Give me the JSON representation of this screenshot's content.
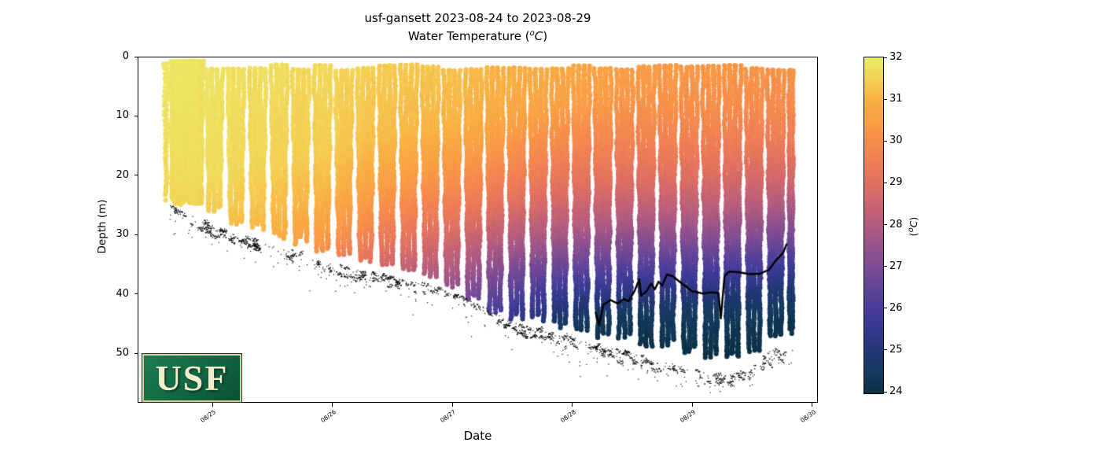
{
  "figure": {
    "title_line1": "usf-gansett 2023-08-24 to 2023-08-29",
    "title2_pre": "Water Temperature (",
    "title2_sup": "o",
    "title2_main": "C",
    "title2_post": ")"
  },
  "logo": {
    "text": "USF",
    "bg_top": "#1c7e54",
    "bg_bottom": "#0a5134",
    "border": "#d9cd9c",
    "fg": "#f3ecca"
  },
  "chart_data": {
    "type": "scatter",
    "title": "usf-gansett 2023-08-24 to 2023-08-29",
    "subtitle": "Water Temperature (°C)",
    "xlabel": "Date",
    "ylabel": "Depth (m)",
    "time_origin": "2023-08-24 00:00",
    "xlim_days": [
      0.377,
      6.049
    ],
    "ylim_depth": [
      0,
      58.3
    ],
    "x_ticks": [
      {
        "day": 1,
        "label": "08/25"
      },
      {
        "day": 2,
        "label": "08/26"
      },
      {
        "day": 3,
        "label": "08/27"
      },
      {
        "day": 4,
        "label": "08/28"
      },
      {
        "day": 5,
        "label": "08/29"
      },
      {
        "day": 6,
        "label": "08/30"
      }
    ],
    "y_ticks": [
      0,
      10,
      20,
      30,
      40,
      50
    ],
    "colorbar": {
      "range": [
        24,
        32
      ],
      "ticks": [
        24,
        25,
        26,
        27,
        28,
        29,
        30,
        31,
        32
      ],
      "label_pre": "(",
      "label_sup": "o",
      "label_main": "C",
      "label_post": ")"
    },
    "colormap_stops": [
      [
        24.0,
        "#0b3045"
      ],
      [
        24.5,
        "#143a60"
      ],
      [
        25.0,
        "#223674"
      ],
      [
        25.5,
        "#33388c"
      ],
      [
        26.0,
        "#463d9a"
      ],
      [
        26.5,
        "#604497"
      ],
      [
        27.0,
        "#7b4b94"
      ],
      [
        27.5,
        "#97538a"
      ],
      [
        28.0,
        "#b25c80"
      ],
      [
        28.5,
        "#ca6570"
      ],
      [
        29.0,
        "#e07060"
      ],
      [
        29.5,
        "#ee7e55"
      ],
      [
        30.0,
        "#f68d4b"
      ],
      [
        30.5,
        "#f99f44"
      ],
      [
        31.0,
        "#f8b143"
      ],
      [
        31.5,
        "#f3d254"
      ],
      [
        32.0,
        "#e9ee6b"
      ]
    ],
    "temperature_profiles": [
      {
        "t": 0.55,
        "points": [
          [
            0,
            31.9
          ],
          [
            24,
            31.6
          ]
        ]
      },
      {
        "t": 1.0,
        "points": [
          [
            0,
            31.8
          ],
          [
            20,
            31.7
          ],
          [
            28,
            31.3
          ]
        ]
      },
      {
        "t": 1.5,
        "points": [
          [
            0,
            31.7
          ],
          [
            18,
            31.5
          ],
          [
            25,
            31.2
          ],
          [
            31,
            30.9
          ]
        ]
      },
      {
        "t": 2.0,
        "points": [
          [
            0,
            31.6
          ],
          [
            16,
            31.4
          ],
          [
            23,
            31.0
          ],
          [
            29,
            30.4
          ],
          [
            33,
            29.8
          ]
        ]
      },
      {
        "t": 2.5,
        "points": [
          [
            0,
            31.4
          ],
          [
            14,
            31.1
          ],
          [
            21,
            30.5
          ],
          [
            27,
            29.7
          ],
          [
            32,
            29.0
          ],
          [
            36,
            28.3
          ]
        ]
      },
      {
        "t": 3.0,
        "points": [
          [
            0,
            31.3
          ],
          [
            12,
            31.0
          ],
          [
            19,
            30.3
          ],
          [
            26,
            29.4
          ],
          [
            31,
            28.6
          ],
          [
            36,
            27.9
          ],
          [
            40,
            27.2
          ]
        ]
      },
      {
        "t": 3.5,
        "points": [
          [
            0,
            31.0
          ],
          [
            10,
            30.7
          ],
          [
            17,
            30.0
          ],
          [
            24,
            29.1
          ],
          [
            30,
            28.1
          ],
          [
            35,
            27.1
          ],
          [
            40,
            26.2
          ],
          [
            44,
            25.5
          ]
        ]
      },
      {
        "t": 4.0,
        "points": [
          [
            0,
            30.8
          ],
          [
            8,
            30.5
          ],
          [
            15,
            29.8
          ],
          [
            22,
            29.0
          ],
          [
            28,
            28.1
          ],
          [
            33,
            27.1
          ],
          [
            37,
            26.2
          ],
          [
            41,
            25.2
          ],
          [
            44,
            24.6
          ],
          [
            47,
            24.2
          ]
        ]
      },
      {
        "t": 4.5,
        "points": [
          [
            0,
            30.5
          ],
          [
            8,
            30.2
          ],
          [
            15,
            29.6
          ],
          [
            22,
            28.8
          ],
          [
            27,
            28.0
          ],
          [
            32,
            27.0
          ],
          [
            36,
            26.1
          ],
          [
            40,
            25.2
          ],
          [
            44,
            24.4
          ],
          [
            48,
            24.1
          ]
        ]
      },
      {
        "t": 5.0,
        "points": [
          [
            0,
            30.4
          ],
          [
            8,
            30.1
          ],
          [
            14,
            29.6
          ],
          [
            20,
            29.0
          ],
          [
            26,
            28.1
          ],
          [
            31,
            27.1
          ],
          [
            35,
            26.2
          ],
          [
            39,
            25.3
          ],
          [
            43,
            24.5
          ],
          [
            50,
            24.0
          ]
        ]
      },
      {
        "t": 5.5,
        "points": [
          [
            0,
            30.3
          ],
          [
            8,
            30.0
          ],
          [
            14,
            29.5
          ],
          [
            20,
            28.8
          ],
          [
            25,
            28.1
          ],
          [
            30,
            27.2
          ],
          [
            34,
            26.3
          ],
          [
            38,
            25.4
          ],
          [
            42,
            24.6
          ],
          [
            50,
            24.0
          ]
        ]
      },
      {
        "t": 5.85,
        "points": [
          [
            0,
            30.3
          ],
          [
            10,
            29.8
          ],
          [
            16,
            29.2
          ],
          [
            22,
            28.4
          ],
          [
            27,
            27.5
          ],
          [
            31,
            26.7
          ],
          [
            35,
            25.8
          ],
          [
            39,
            24.9
          ],
          [
            45,
            24.1
          ]
        ]
      }
    ],
    "max_profile_depth": [
      [
        0.6,
        23.5
      ],
      [
        0.92,
        25.0
      ],
      [
        1.2,
        27.5
      ],
      [
        1.6,
        30.0
      ],
      [
        2.0,
        32.5
      ],
      [
        2.4,
        34.5
      ],
      [
        2.8,
        36.5
      ],
      [
        3.1,
        39.5
      ],
      [
        3.35,
        42.5
      ],
      [
        3.6,
        43.5
      ],
      [
        4.0,
        45.5
      ],
      [
        4.4,
        47.0
      ],
      [
        4.8,
        48.5
      ],
      [
        5.1,
        49.5
      ],
      [
        5.3,
        50.5
      ],
      [
        5.5,
        49.5
      ],
      [
        5.65,
        47.5
      ],
      [
        5.84,
        45.5
      ]
    ],
    "seafloor_track": [
      [
        0.64,
        25.0
      ],
      [
        0.8,
        26.5
      ],
      [
        1.0,
        28.6
      ],
      [
        1.3,
        30.5
      ],
      [
        1.6,
        32.5
      ],
      [
        2.0,
        35.0
      ],
      [
        2.4,
        36.5
      ],
      [
        2.8,
        38.5
      ],
      [
        3.0,
        39.5
      ],
      [
        3.2,
        41.5
      ],
      [
        3.5,
        44.5
      ],
      [
        3.8,
        46.5
      ],
      [
        4.1,
        48.0
      ],
      [
        4.5,
        50.0
      ],
      [
        4.9,
        52.0
      ],
      [
        5.2,
        53.5
      ],
      [
        5.45,
        53.0
      ],
      [
        5.6,
        50.0
      ],
      [
        5.75,
        48.5
      ],
      [
        5.85,
        48.5
      ]
    ],
    "mixed_layer_line": {
      "color": "#000000",
      "points": [
        [
          4.195,
          43.0
        ],
        [
          4.225,
          45.2
        ],
        [
          4.26,
          41.8
        ],
        [
          4.32,
          41.0
        ],
        [
          4.38,
          41.6
        ],
        [
          4.43,
          40.8
        ],
        [
          4.47,
          41.2
        ],
        [
          4.52,
          39.5
        ],
        [
          4.56,
          37.5
        ],
        [
          4.575,
          40.3
        ],
        [
          4.62,
          39.5
        ],
        [
          4.66,
          38.2
        ],
        [
          4.69,
          39.2
        ],
        [
          4.72,
          37.9
        ],
        [
          4.75,
          38.6
        ],
        [
          4.79,
          36.7
        ],
        [
          4.84,
          37.0
        ],
        [
          4.92,
          38.3
        ],
        [
          5.0,
          39.5
        ],
        [
          5.09,
          39.9
        ],
        [
          5.16,
          39.7
        ],
        [
          5.22,
          39.8
        ],
        [
          5.24,
          44.1
        ],
        [
          5.27,
          37.0
        ],
        [
          5.31,
          36.2
        ],
        [
          5.39,
          36.3
        ],
        [
          5.47,
          36.6
        ],
        [
          5.56,
          36.6
        ],
        [
          5.64,
          35.9
        ],
        [
          5.7,
          34.3
        ],
        [
          5.76,
          33.0
        ],
        [
          5.79,
          31.5
        ]
      ]
    },
    "profile_spec": {
      "first_profile": {
        "t0": 0.6,
        "t1": 0.627,
        "legs": 2,
        "z_top": 1.2,
        "dz": 0.8
      },
      "dense_block": {
        "t0": 0.655,
        "t1": 0.92,
        "legs": 22,
        "z_top": 0.8,
        "dz": 0.45
      },
      "regular": {
        "t_start": 0.95,
        "period": 0.18,
        "width": 0.135,
        "legs": 6,
        "t_end": 5.84,
        "dz": 0.5
      }
    },
    "marker": {
      "radius_px": 3.1,
      "bottom_dot_color": "#000000"
    }
  }
}
